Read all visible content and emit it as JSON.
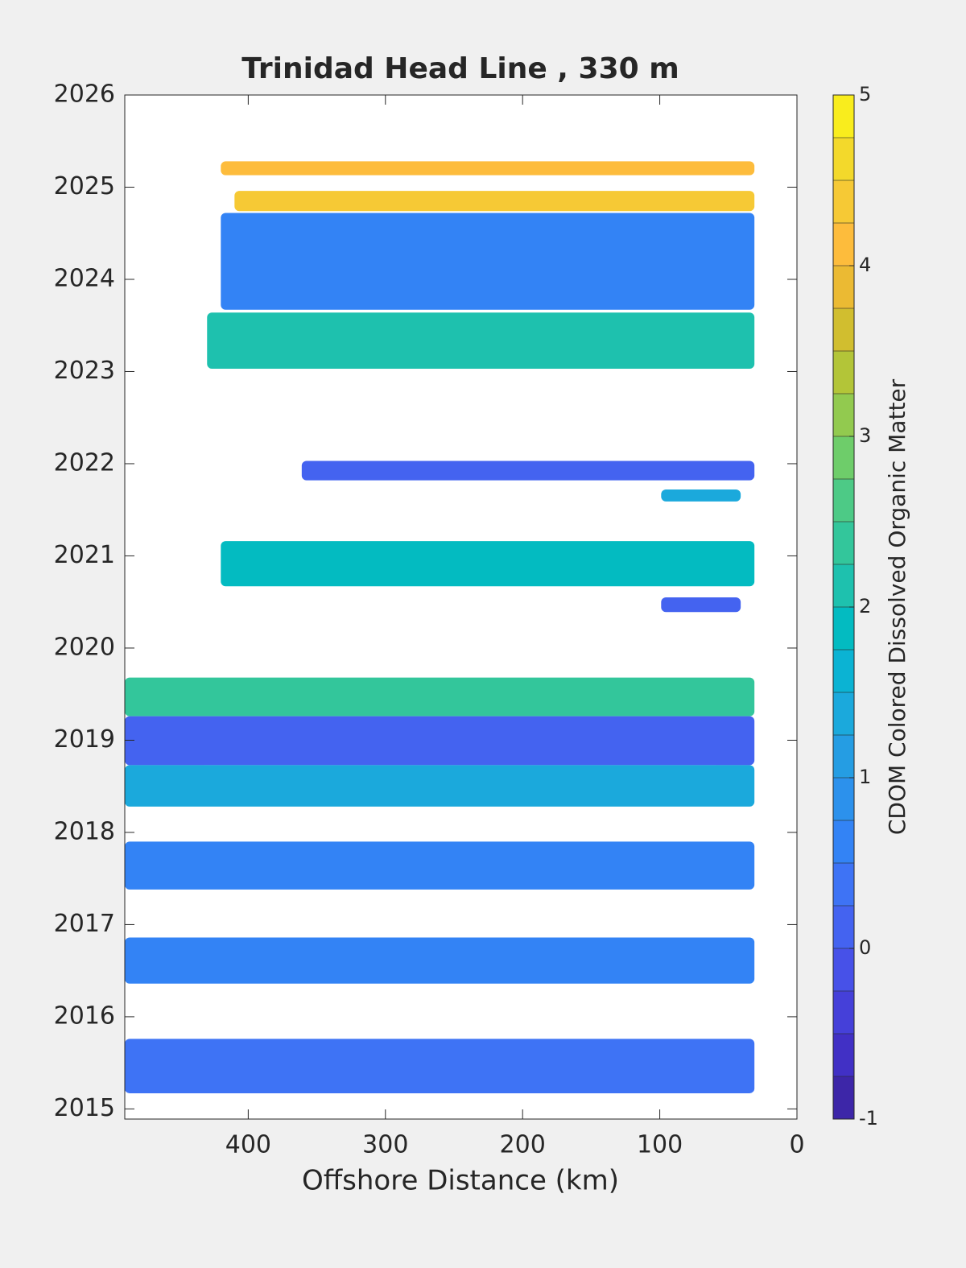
{
  "chart_data": {
    "type": "contour",
    "title": "Trinidad Head Line , 330 m",
    "xlabel": "Offshore Distance (km)",
    "colorbar_label": "CDOM Colored Dissolved Organic Matter",
    "xlim": [
      490,
      0
    ],
    "xticks": [
      400,
      300,
      200,
      100,
      0
    ],
    "ylim": [
      2014.89,
      2026
    ],
    "yticks": [
      2015,
      2016,
      2017,
      2018,
      2019,
      2020,
      2021,
      2022,
      2023,
      2024,
      2025,
      2026
    ],
    "clim": [
      -1,
      5
    ],
    "cticks": [
      -1,
      0,
      1,
      2,
      3,
      4,
      5
    ],
    "colormap": [
      "#3d26a8",
      "#4130c5",
      "#4540d9",
      "#4751e8",
      "#4463f0",
      "#3e73f5",
      "#3383f5",
      "#2c91ec",
      "#259de3",
      "#1ba9dc",
      "#0bb3d3",
      "#03bbc1",
      "#1ec1ae",
      "#33c69b",
      "#4dca86",
      "#6ecd6a",
      "#92ca4f",
      "#b3c538",
      "#d1be2f",
      "#ebba33",
      "#fdbc3c",
      "#f6c935",
      "#f3d92b",
      "#f9ed1d"
    ],
    "regions": [
      {
        "x": [
          420,
          31
        ],
        "y": [
          2025.13,
          2025.28
        ],
        "value": 4.2
      },
      {
        "x": [
          410,
          31
        ],
        "y": [
          2024.74,
          2024.96
        ],
        "value": 4.3
      },
      {
        "x": [
          420,
          31
        ],
        "y": [
          2023.67,
          2024.72
        ],
        "value": 0.6
      },
      {
        "x": [
          430,
          31
        ],
        "y": [
          2023.03,
          2023.64
        ],
        "value": 2.0
      },
      {
        "x": [
          361,
          31
        ],
        "y": [
          2021.82,
          2022.03
        ],
        "value": 0.2
      },
      {
        "x": [
          99,
          41
        ],
        "y": [
          2021.59,
          2021.72
        ],
        "value": 1.4
      },
      {
        "x": [
          420,
          31
        ],
        "y": [
          2020.67,
          2021.16
        ],
        "value": 1.9
      },
      {
        "x": [
          99,
          41
        ],
        "y": [
          2020.39,
          2020.55
        ],
        "value": 0.2
      },
      {
        "x": [
          490,
          31
        ],
        "y": [
          2019.26,
          2019.68
        ],
        "value": 2.3
      },
      {
        "x": [
          490,
          31
        ],
        "y": [
          2018.73,
          2019.26
        ],
        "value": 0.1
      },
      {
        "x": [
          490,
          31
        ],
        "y": [
          2018.28,
          2018.73
        ],
        "value": 1.3
      },
      {
        "x": [
          490,
          31
        ],
        "y": [
          2017.38,
          2017.9
        ],
        "value": 0.7
      },
      {
        "x": [
          490,
          31
        ],
        "y": [
          2016.36,
          2016.86
        ],
        "value": 0.7
      },
      {
        "x": [
          490,
          31
        ],
        "y": [
          2015.17,
          2015.76
        ],
        "value": 0.4
      }
    ]
  }
}
